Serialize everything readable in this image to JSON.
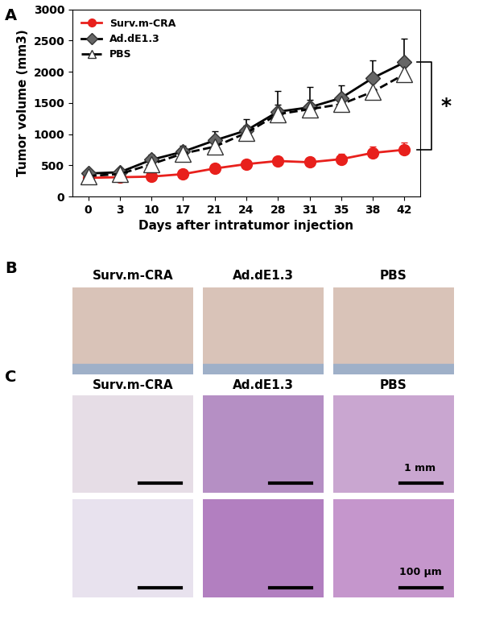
{
  "chart_data": {
    "type": "line",
    "x_label": "Days after intratumor injection",
    "y_label": "Tumor volume (mm3)",
    "categories": [
      "0",
      "3",
      "10",
      "17",
      "21",
      "24",
      "28",
      "31",
      "35",
      "38",
      "42"
    ],
    "series": [
      {
        "name": "Surv.m-CRA",
        "color": "#e8201c",
        "marker": "circle",
        "line_style": "solid",
        "values": [
          300,
          310,
          320,
          360,
          450,
          520,
          570,
          550,
          600,
          700,
          750
        ],
        "errors": [
          20,
          20,
          30,
          30,
          40,
          40,
          60,
          50,
          80,
          100,
          120
        ]
      },
      {
        "name": "Ad.dE1.3",
        "color": "#000000",
        "marker": "diamond",
        "line_style": "solid",
        "values": [
          370,
          390,
          590,
          720,
          900,
          1060,
          1360,
          1430,
          1580,
          1900,
          2150
        ],
        "errors": [
          30,
          40,
          80,
          100,
          150,
          180,
          330,
          330,
          200,
          280,
          380
        ]
      },
      {
        "name": "PBS",
        "color": "#000000",
        "marker": "triangle",
        "line_style": "dashed",
        "values": [
          330,
          360,
          520,
          690,
          800,
          1020,
          1320,
          1400,
          1480,
          1680,
          1960
        ],
        "errors": [
          30,
          30,
          60,
          80,
          100,
          120,
          150,
          150,
          120,
          150,
          200
        ]
      }
    ],
    "ylim": [
      0,
      3000
    ],
    "yticks": [
      0,
      500,
      1000,
      1500,
      2000,
      2500,
      3000
    ],
    "legend": "upper left",
    "grid": false,
    "annotations": [
      "*"
    ]
  },
  "panels": {
    "labels": [
      "A",
      "B",
      "C"
    ],
    "B": {
      "titles": [
        "Surv.m-CRA",
        "Ad.dE1.3",
        "PBS"
      ]
    },
    "C": {
      "titles": [
        "Surv.m-CRA",
        "Ad.dE1.3",
        "PBS"
      ],
      "scale_bars": [
        "1 mm",
        "100 μm"
      ]
    }
  }
}
